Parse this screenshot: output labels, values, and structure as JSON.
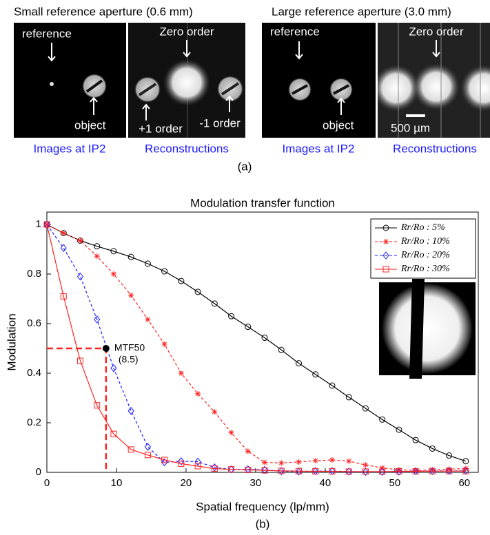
{
  "panel_a": {
    "titles": [
      "Small reference aperture (0.6 mm)",
      "Large reference aperture (3.0 mm)"
    ],
    "labels": [
      "reference",
      "object",
      "Zero order",
      "+1 order",
      "-1 order",
      "reference",
      "object",
      "Zero order",
      "500 µm"
    ],
    "captions": [
      "Images at IP2",
      "Reconstructions",
      "Images at IP2",
      "Reconstructions"
    ],
    "tag": "(a)"
  },
  "chart_data": {
    "type": "line",
    "title": "Modulation transfer function",
    "x_label": "Spatial frequency (lp/mm)",
    "y_label": "Modulation",
    "tag": "(b)",
    "x": [
      0,
      2.4,
      4.8,
      7.2,
      9.6,
      12.1,
      14.5,
      16.9,
      19.3,
      21.7,
      24.1,
      26.5,
      28.9,
      31.3,
      33.7,
      36.2,
      38.6,
      41,
      43.4,
      45.8,
      48.2,
      50.6,
      53,
      55.4,
      57.8,
      60.2
    ],
    "series": [
      {
        "name": "Rr/Ro : 5%",
        "color": "#000000",
        "line_style": "solid",
        "marker": "circle",
        "values": [
          1,
          0.965,
          0.935,
          0.912,
          0.892,
          0.869,
          0.842,
          0.811,
          0.772,
          0.728,
          0.681,
          0.63,
          0.587,
          0.543,
          0.494,
          0.44,
          0.395,
          0.35,
          0.303,
          0.258,
          0.213,
          0.172,
          0.13,
          0.096,
          0.068,
          0.045
        ]
      },
      {
        "name": "Rr/Ro : 10%",
        "color": "#ff2020",
        "line_style": "dashed",
        "marker": "star",
        "values": [
          1,
          0.965,
          0.935,
          0.872,
          0.8,
          0.714,
          0.617,
          0.517,
          0.4,
          0.317,
          0.244,
          0.16,
          0.085,
          0.04,
          0.038,
          0.042,
          0.047,
          0.05,
          0.045,
          0.03,
          0.018,
          0.01,
          0.008,
          0.01,
          0.013,
          0.015
        ]
      },
      {
        "name": "Rr/Ro : 20%",
        "color": "#1a1aff",
        "line_style": "dashed",
        "marker": "diamond",
        "values": [
          1,
          0.905,
          0.79,
          0.617,
          0.42,
          0.248,
          0.103,
          0.04,
          0.045,
          0.043,
          0.02,
          0.012,
          0.012,
          0.01,
          0.005,
          0.003,
          0.005,
          0.005,
          0.003,
          0.002,
          0.002,
          0.003,
          0.005,
          0.005,
          0.006,
          0.006
        ]
      },
      {
        "name": "Rr/Ro : 30%",
        "color": "#ff2020",
        "line_style": "solid",
        "marker": "square",
        "values": [
          1,
          0.71,
          0.45,
          0.27,
          0.155,
          0.092,
          0.07,
          0.05,
          0.035,
          0.025,
          0.015,
          0.012,
          0.01,
          0.008,
          0.006,
          0.005,
          0.004,
          0.004,
          0.003,
          0.003,
          0.003,
          0.004,
          0.004,
          0.005,
          0.005,
          0.005
        ]
      }
    ],
    "annotation": {
      "x": 8.5,
      "y": 0.5,
      "label": "MTF50",
      "value_label": "(8.5)",
      "color": "#ff2020"
    },
    "xlim": [
      0,
      62
    ],
    "ylim": [
      0,
      1.05
    ],
    "xticks": [
      0,
      10,
      20,
      30,
      40,
      50,
      60
    ],
    "yticks": [
      0,
      0.2,
      0.4,
      0.6,
      0.8,
      1
    ],
    "legend": "upper right"
  }
}
